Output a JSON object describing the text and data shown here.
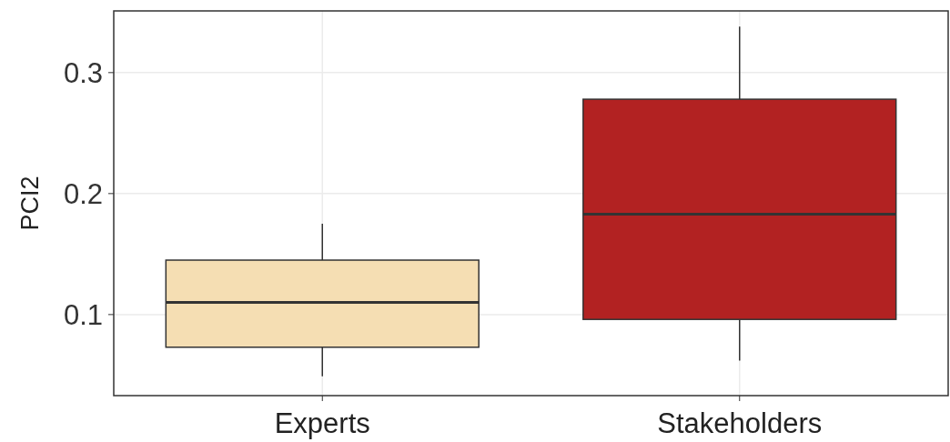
{
  "chart_data": {
    "type": "box",
    "ylabel": "PCI2",
    "categories": [
      "Experts",
      "Stakeholders"
    ],
    "boxes": [
      {
        "low": 0.049,
        "q1": 0.073,
        "median": 0.11,
        "q3": 0.145,
        "high": 0.175
      },
      {
        "low": 0.062,
        "q1": 0.096,
        "median": 0.183,
        "q3": 0.278,
        "high": 0.338
      }
    ],
    "colors": [
      "#f5deb3",
      "#b22222"
    ],
    "ylim": [
      0.033,
      0.351
    ],
    "yticks": [
      0.1,
      0.2,
      0.3
    ],
    "grid": true
  }
}
